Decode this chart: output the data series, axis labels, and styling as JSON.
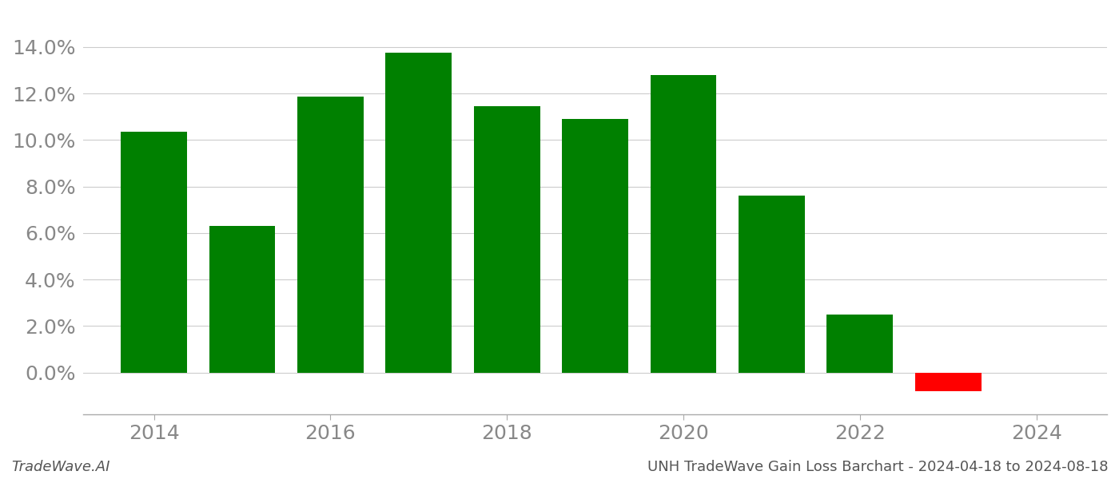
{
  "years": [
    2014,
    2015,
    2016,
    2017,
    2018,
    2019,
    2020,
    2021,
    2022,
    2023
  ],
  "values": [
    0.1035,
    0.063,
    0.1185,
    0.1375,
    0.1145,
    0.109,
    0.128,
    0.076,
    0.025,
    -0.008
  ],
  "bar_colors": [
    "#008000",
    "#008000",
    "#008000",
    "#008000",
    "#008000",
    "#008000",
    "#008000",
    "#008000",
    "#008000",
    "#ff0000"
  ],
  "footer_left": "TradeWave.AI",
  "footer_right": "UNH TradeWave Gain Loss Barchart - 2024-04-18 to 2024-08-18",
  "ylim": [
    -0.018,
    0.155
  ],
  "ytick_values": [
    0.0,
    0.02,
    0.04,
    0.06,
    0.08,
    0.1,
    0.12,
    0.14
  ],
  "xlim": [
    2013.2,
    2024.8
  ],
  "xtick_positions": [
    2014,
    2016,
    2018,
    2020,
    2022,
    2024
  ],
  "xtick_labels": [
    "2014",
    "2016",
    "2018",
    "2020",
    "2022",
    "2024"
  ],
  "background_color": "#ffffff",
  "grid_color": "#cccccc",
  "axis_label_color": "#888888",
  "bar_width": 0.75,
  "tick_fontsize": 18,
  "footer_fontsize": 13
}
